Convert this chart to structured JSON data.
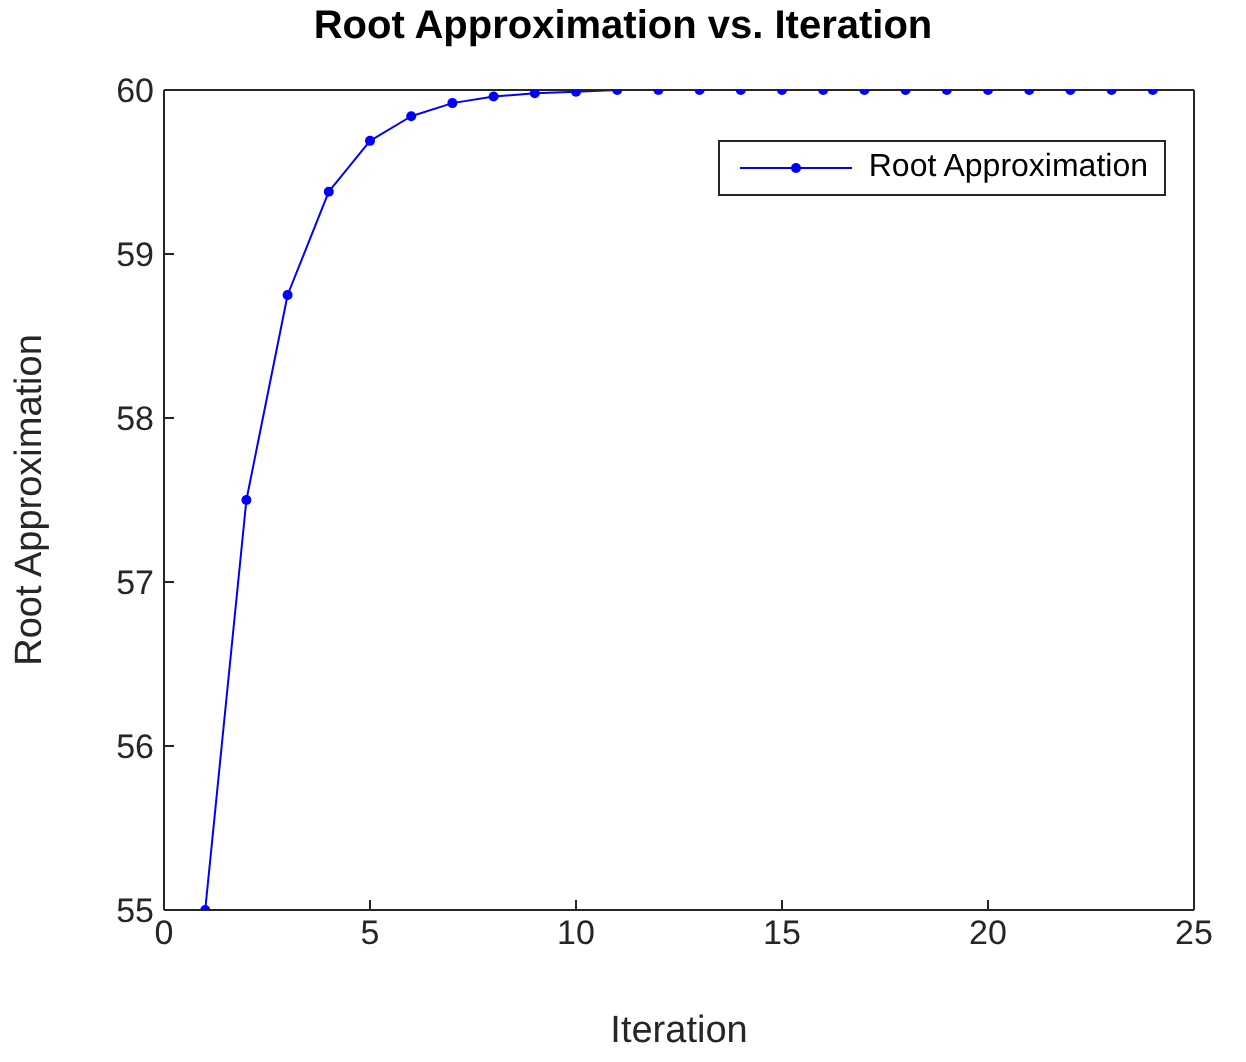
{
  "chart_data": {
    "type": "line",
    "title": "Root Approximation vs. Iteration",
    "xlabel": "Iteration",
    "ylabel": "Root Approximation",
    "x": [
      1,
      2,
      3,
      4,
      5,
      6,
      7,
      8,
      9,
      10,
      11,
      12,
      13,
      14,
      15,
      16,
      17,
      18,
      19,
      20,
      21,
      22,
      23,
      24
    ],
    "series": [
      {
        "name": "Root Approximation",
        "color": "#0000ff",
        "values": [
          55,
          57.5,
          58.75,
          59.38,
          59.69,
          59.84,
          59.92,
          59.96,
          59.98,
          59.99,
          60,
          60,
          60,
          60,
          60,
          60,
          60,
          60,
          60,
          60,
          60,
          60,
          60,
          60
        ]
      }
    ],
    "xlim": [
      0,
      25
    ],
    "xticks": [
      0,
      5,
      10,
      15,
      20,
      25
    ],
    "ylim": [
      55,
      60
    ],
    "yticks": [
      55,
      56,
      57,
      58,
      59,
      60
    ],
    "grid": false,
    "legend": "top right",
    "marker": "circle",
    "line_style": "solid"
  }
}
